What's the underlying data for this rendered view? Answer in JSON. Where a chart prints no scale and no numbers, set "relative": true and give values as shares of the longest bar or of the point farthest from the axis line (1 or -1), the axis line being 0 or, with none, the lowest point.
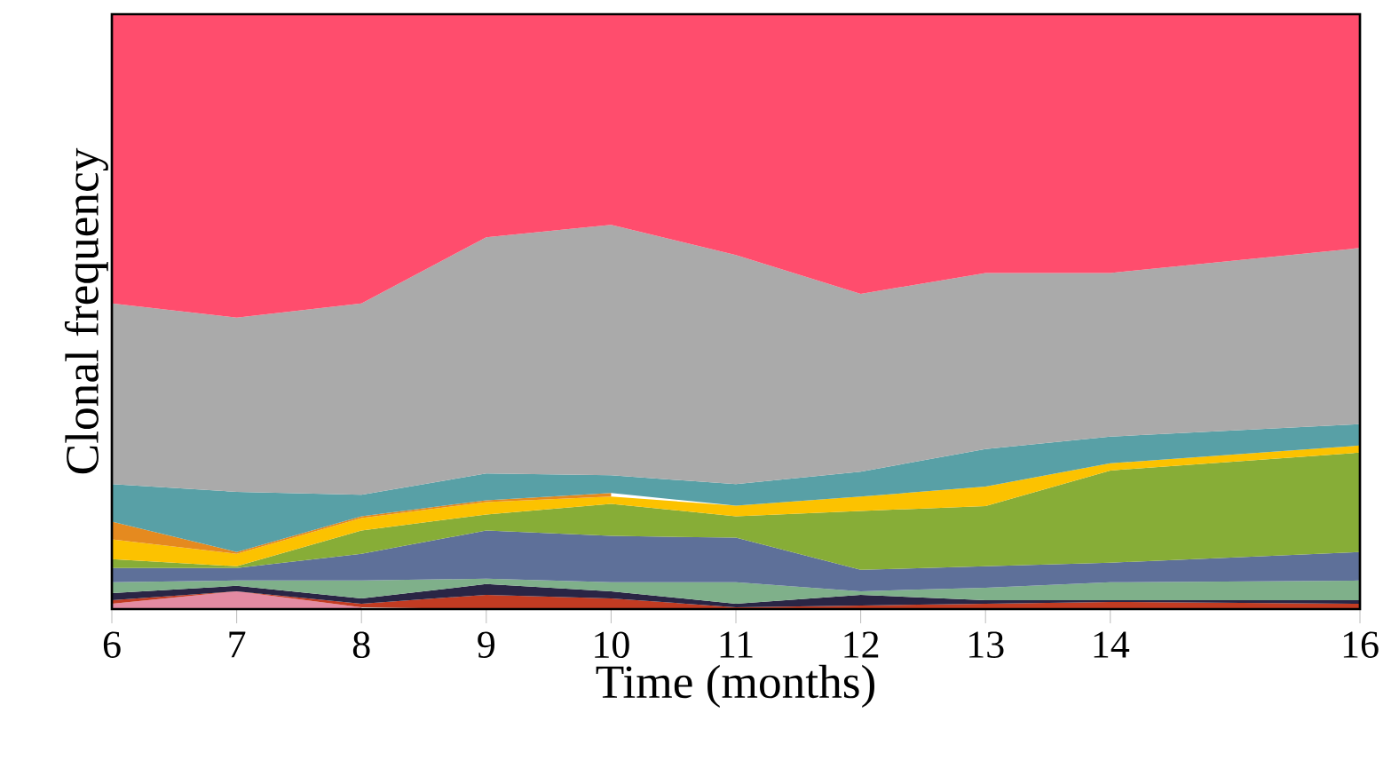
{
  "chart_data": {
    "type": "area",
    "stacked": true,
    "relative": true,
    "xlabel": "Time (months)",
    "ylabel": "Clonal frequency",
    "x": [
      6,
      7,
      8,
      9,
      10,
      11,
      12,
      13,
      14,
      16
    ],
    "xlim": [
      6,
      16
    ],
    "xticks": [
      6,
      7,
      8,
      9,
      10,
      11,
      12,
      13,
      14,
      16
    ],
    "tick_labels": "x",
    "grid": false,
    "series": [
      {
        "color": "#e48aa2",
        "values": [
          0.009,
          0.03,
          0.003,
          null,
          null,
          null,
          null,
          null,
          null,
          null
        ]
      },
      {
        "color": "#c23b22",
        "values": [
          0.006,
          0,
          0.006,
          0.024,
          0.018,
          0.003,
          0.006,
          0.009,
          0.012,
          0.009
        ]
      },
      {
        "color": "#2a2545",
        "values": [
          0.012,
          0.009,
          0.009,
          0.018,
          0.012,
          0.006,
          0.018,
          0.006,
          0.003,
          0.006
        ]
      },
      {
        "color": "#7fb08a",
        "values": [
          0.018,
          0.009,
          0.03,
          0.009,
          0.015,
          0.036,
          0.006,
          0.021,
          0.03,
          0.033
        ]
      },
      {
        "color": "#5e7099",
        "values": [
          0.024,
          0.021,
          0.045,
          0.081,
          0.078,
          0.075,
          0.036,
          0.036,
          0.033,
          0.048
        ]
      },
      {
        "color": "#87ad37",
        "values": [
          0.015,
          0.003,
          0.039,
          0.027,
          0.054,
          0.036,
          0.099,
          0.101,
          0.155,
          0.167
        ]
      },
      {
        "color": "#fcc200",
        "values": [
          0.033,
          0.021,
          0.021,
          0.021,
          0.012,
          0.018,
          0.024,
          0.033,
          0.012,
          0.012
        ]
      },
      {
        "color": "#e58a1f",
        "values": [
          0.03,
          0.003,
          0.003,
          0.003,
          0.006,
          null,
          null,
          null,
          null,
          null
        ]
      },
      {
        "color": "#58a0a6",
        "values": [
          0.063,
          0.101,
          0.036,
          0.045,
          0.03,
          0.036,
          0.042,
          0.063,
          0.045,
          0.036
        ]
      },
      {
        "color": "#aaaaaa",
        "values": [
          0.304,
          0.293,
          0.322,
          0.397,
          0.421,
          0.385,
          0.299,
          0.296,
          0.275,
          0.296
        ]
      },
      {
        "color": "#ff4d6d",
        "values": [
          0.486,
          0.51,
          0.486,
          0.375,
          0.354,
          0.405,
          0.47,
          0.435,
          0.435,
          0.393
        ]
      }
    ]
  }
}
